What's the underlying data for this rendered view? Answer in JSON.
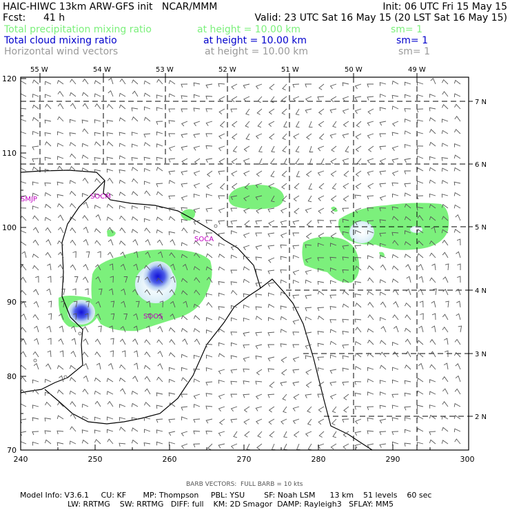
{
  "header": {
    "title": "HAIC-HIWC 13km ARW-GFS init   NCAR/MMM",
    "init": "Init: 06 UTC Fri 15 May 15",
    "fcst_label": "Fcst:",
    "fcst_value": "41 h",
    "valid": "Valid: 23 UTC Sat 16 May 15 (20 LST Sat 16 May 15)",
    "fields": [
      {
        "name": "Total precipitation mixing ratio",
        "height": "at height = 10.00 km",
        "sm": "sm= 1",
        "color": "#7cf07c"
      },
      {
        "name": "Total cloud mixing ratio",
        "height": "at height = 10.00 km",
        "sm": "sm= 1",
        "color": "#0000cc"
      },
      {
        "name": "Horizontal wind vectors",
        "height": "at height = 10.00 km",
        "sm": "sm= 1",
        "color": "#9a9a9a"
      }
    ]
  },
  "map": {
    "top_lon_labels": [
      "55 W",
      "54 W",
      "53 W",
      "52 W",
      "51 W",
      "50 W",
      "49 W"
    ],
    "right_lat_labels": [
      "7 N",
      "6 N",
      "5 N",
      "4 N",
      "3 N",
      "2 N"
    ],
    "left_y_ticks": [
      "120",
      "110",
      "100",
      "90",
      "80",
      "70"
    ],
    "bottom_x_ticks": [
      "240",
      "250",
      "260",
      "270",
      "280",
      "290",
      "300"
    ],
    "stations": [
      "SMJP",
      "SOCM",
      "SOCA",
      "SOOS"
    ],
    "colors": {
      "precip": "#7cf07c",
      "cloud": "#1a1adf",
      "coast": "#000000",
      "barb": "#555555",
      "station": "#c000c0"
    }
  },
  "footer": {
    "barb_note": "BARB VECTORS:  FULL BARB = 10 kts",
    "line1": "Model Info: V3.6.1     CU: KF       MP: Thompson     PBL: YSU        SF: Noah LSM      13 km    51 levels    60 sec",
    "line2": "LW: RRTMG    SW: RRTMG   DIFF: full    KM: 2D Smagor  DAMP: Rayleigh3   SFLAY: MM5"
  }
}
